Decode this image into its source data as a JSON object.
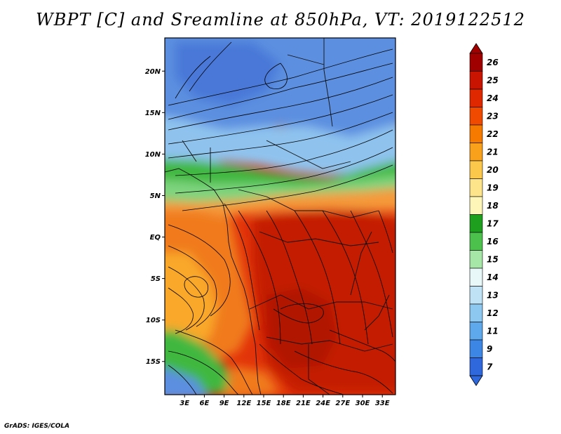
{
  "title": "WBPT [C] and Sreamline at 850hPa, VT: 2019122512",
  "credit": "GrADS: IGES/COLA",
  "map": {
    "lon_range": [
      0,
      35
    ],
    "lat_range": [
      -19,
      24
    ],
    "lat_ticks": [
      {
        "value": 20,
        "label": "20N"
      },
      {
        "value": 15,
        "label": "15N"
      },
      {
        "value": 10,
        "label": "10N"
      },
      {
        "value": 5,
        "label": "5N"
      },
      {
        "value": 0,
        "label": "EQ"
      },
      {
        "value": -5,
        "label": "5S"
      },
      {
        "value": -10,
        "label": "10S"
      },
      {
        "value": -15,
        "label": "15S"
      }
    ],
    "lon_ticks": [
      {
        "value": 3,
        "label": "3E"
      },
      {
        "value": 6,
        "label": "6E"
      },
      {
        "value": 9,
        "label": "9E"
      },
      {
        "value": 12,
        "label": "12E"
      },
      {
        "value": 15,
        "label": "15E"
      },
      {
        "value": 18,
        "label": "18E"
      },
      {
        "value": 21,
        "label": "21E"
      },
      {
        "value": 24,
        "label": "24E"
      },
      {
        "value": 27,
        "label": "27E"
      },
      {
        "value": 30,
        "label": "30E"
      },
      {
        "value": 33,
        "label": "33E"
      }
    ]
  },
  "colorbar": {
    "labels": [
      "26",
      "25",
      "24",
      "23",
      "22",
      "21",
      "20",
      "19",
      "18",
      "17",
      "16",
      "15",
      "14",
      "13",
      "12",
      "11",
      "9",
      "7"
    ],
    "colors": [
      "#a00000",
      "#c81400",
      "#e02800",
      "#ef4a00",
      "#f77a00",
      "#f9a11a",
      "#fbc84c",
      "#fde38a",
      "#fef6b8",
      "#1ea01e",
      "#4cc24c",
      "#a6e6a6",
      "#e8f8f8",
      "#bfe2f4",
      "#8cc8f0",
      "#5ea8ec",
      "#3c86e6",
      "#2f68dc"
    ]
  },
  "colors": {
    "cold_top": "#5b8fe0",
    "blue_mid": "#8fc3ee",
    "green": "#3fb83f",
    "orange": "#f07a1a",
    "red": "#d52a0a",
    "deep_red": "#b81806"
  }
}
